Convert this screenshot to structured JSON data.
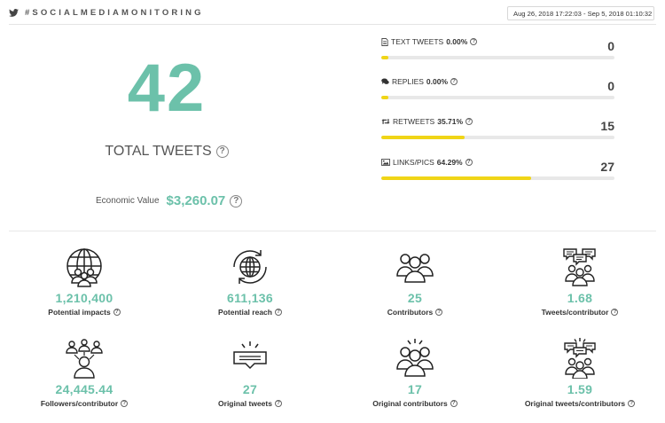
{
  "header": {
    "title": "#SOCIALMEDIAMONITORING",
    "brand_icon": "twitter-icon",
    "date_icon": "calendar-icon",
    "date_range": "Aug 26, 2018 17:22:03 - Sep 5, 2018 01:10:32"
  },
  "summary": {
    "total_value": "42",
    "total_label": "TOTAL TWEETS",
    "economic_label": "Economic Value",
    "economic_value": "$3,260.07",
    "help_glyph": "?"
  },
  "breakdown": [
    {
      "icon": "document-icon",
      "label": "TEXT TWEETS",
      "percent": "0.00%",
      "value": "0",
      "fill_percent": 3
    },
    {
      "icon": "chat-icon",
      "label": "REPLIES",
      "percent": "0.00%",
      "value": "0",
      "fill_percent": 3
    },
    {
      "icon": "retweet-icon",
      "label": "RETWEETS",
      "percent": "35.71%",
      "value": "15",
      "fill_percent": 35.71
    },
    {
      "icon": "image-icon",
      "label": "LINKS/PICS",
      "percent": "64.29%",
      "value": "27",
      "fill_percent": 64.29
    }
  ],
  "metrics": [
    {
      "icon": "globe-people-icon",
      "value": "1,210,400",
      "label": "Potential impacts"
    },
    {
      "icon": "globe-refresh-icon",
      "value": "611,136",
      "label": "Potential reach"
    },
    {
      "icon": "people-group-icon",
      "value": "25",
      "label": "Contributors"
    },
    {
      "icon": "people-chat-icon",
      "value": "1.68",
      "label": "Tweets/contributor"
    },
    {
      "icon": "people-network-icon",
      "value": "24,445.44",
      "label": "Followers/contributor"
    },
    {
      "icon": "message-spark-icon",
      "value": "27",
      "label": "Original tweets"
    },
    {
      "icon": "people-spark-icon",
      "value": "17",
      "label": "Original contributors"
    },
    {
      "icon": "people-chat-spark-icon",
      "value": "1.59",
      "label": "Original tweets/contributors"
    }
  ],
  "colors": {
    "accent": "#6cc1aa",
    "bar": "#f0d517",
    "track": "#e8e8e8"
  }
}
